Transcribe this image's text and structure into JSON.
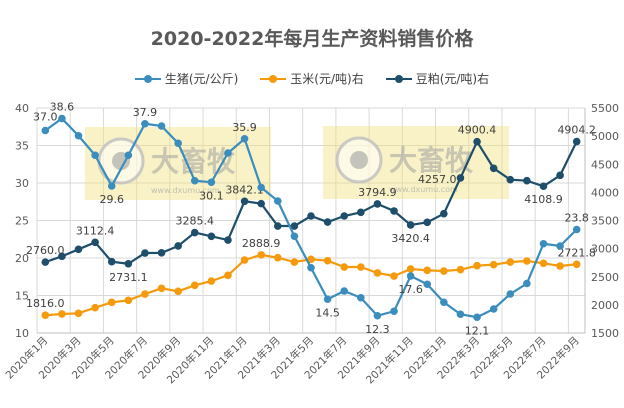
{
  "chart_data": {
    "type": "line",
    "title": "2020-2022年每月生产资料销售价格",
    "categories": [
      "2020年1月",
      "2020年2月",
      "2020年3月",
      "2020年4月",
      "2020年5月",
      "2020年6月",
      "2020年7月",
      "2020年8月",
      "2020年9月",
      "2020年10月",
      "2020年11月",
      "2020年12月",
      "2021年1月",
      "2021年2月",
      "2021年3月",
      "2021年4月",
      "2021年5月",
      "2021年6月",
      "2021年7月",
      "2021年8月",
      "2021年9月",
      "2021年10月",
      "2021年11月",
      "2021年12月",
      "2022年1月",
      "2022年2月",
      "2022年3月",
      "2022年4月",
      "2022年5月",
      "2022年6月",
      "2022年7月",
      "2022年8月",
      "2022年9月"
    ],
    "tick_labels": [
      "2020年1月",
      "2020年3月",
      "2020年5月",
      "2020年7月",
      "2020年9月",
      "2020年11月",
      "2021年1月",
      "2021年3月",
      "2021年5月",
      "2021年7月",
      "2021年9月",
      "2021年11月",
      "2022年1月",
      "2022年3月",
      "2022年5月",
      "2022年7月",
      "2022年9月"
    ],
    "left_axis": {
      "ylim": [
        10,
        40
      ],
      "ticks": [
        "10",
        "15",
        "20",
        "25",
        "30",
        "35",
        "40"
      ]
    },
    "right_axis": {
      "ylim": [
        1500,
        5500
      ],
      "ticks": [
        "1500",
        "2000",
        "2500",
        "3000",
        "3500",
        "4000",
        "4500",
        "5000",
        "5500"
      ]
    },
    "grid": true,
    "legend_position": "top",
    "series": [
      {
        "name": "生猪(元/公斤)",
        "axis": "left",
        "color": "#3b8dbd",
        "values": [
          37.0,
          38.6,
          36.3,
          33.7,
          29.6,
          33.7,
          37.9,
          37.6,
          35.3,
          30.3,
          30.1,
          34.0,
          35.9,
          29.4,
          27.6,
          22.9,
          18.7,
          14.5,
          15.6,
          14.7,
          12.3,
          12.9,
          17.6,
          16.5,
          14.1,
          12.5,
          12.1,
          13.2,
          15.2,
          16.6,
          21.9,
          21.6,
          23.8
        ],
        "labels": [
          {
            "i": 0,
            "text": "37.0",
            "pos": "above-left"
          },
          {
            "i": 1,
            "text": "38.6",
            "pos": "above"
          },
          {
            "i": 4,
            "text": "29.6",
            "pos": "below"
          },
          {
            "i": 6,
            "text": "37.9",
            "pos": "above"
          },
          {
            "i": 10,
            "text": "30.1",
            "pos": "below"
          },
          {
            "i": 12,
            "text": "35.9",
            "pos": "above"
          },
          {
            "i": 17,
            "text": "14.5",
            "pos": "below"
          },
          {
            "i": 20,
            "text": "12.3",
            "pos": "below"
          },
          {
            "i": 22,
            "text": "17.6",
            "pos": "below"
          },
          {
            "i": 26,
            "text": "12.1",
            "pos": "below"
          },
          {
            "i": 32,
            "text": "23.8",
            "pos": "above"
          }
        ]
      },
      {
        "name": "玉米(元/吨)右",
        "axis": "right",
        "color": "#f59a0b",
        "values": [
          1816.0,
          1838,
          1850,
          1950,
          2045,
          2081,
          2193,
          2295,
          2241,
          2348,
          2424,
          2526,
          2798,
          2888.9,
          2839,
          2762,
          2810,
          2786,
          2673,
          2673,
          2567,
          2513,
          2638,
          2614,
          2602,
          2626,
          2697,
          2715,
          2762,
          2780,
          2739,
          2691,
          2721.8
        ],
        "labels": [
          {
            "i": 0,
            "text": "1816.0",
            "pos": "above"
          },
          {
            "i": 13,
            "text": "2888.9",
            "pos": "above"
          },
          {
            "i": 32,
            "text": "2721.8",
            "pos": "above"
          }
        ]
      },
      {
        "name": "豆粕(元/吨)右",
        "axis": "right",
        "color": "#1f4e6b",
        "values": [
          2760.0,
          2863,
          2988,
          3112.4,
          2768,
          2731.1,
          2922,
          2925,
          3047,
          3285.4,
          3219,
          3153,
          3842.1,
          3800,
          3402,
          3402,
          3580,
          3473,
          3580,
          3645,
          3794.9,
          3669,
          3420.4,
          3467,
          3621,
          4257.0,
          4900.4,
          4428,
          4226,
          4208,
          4108.9,
          4303,
          4904.2
        ],
        "labels": [
          {
            "i": 0,
            "text": "2760.0",
            "pos": "above"
          },
          {
            "i": 3,
            "text": "3112.4",
            "pos": "above"
          },
          {
            "i": 5,
            "text": "2731.1",
            "pos": "below"
          },
          {
            "i": 9,
            "text": "3285.4",
            "pos": "above"
          },
          {
            "i": 12,
            "text": "3842.1",
            "pos": "above"
          },
          {
            "i": 20,
            "text": "3794.9",
            "pos": "above"
          },
          {
            "i": 22,
            "text": "3420.4",
            "pos": "below"
          },
          {
            "i": 25,
            "text": "4257.0",
            "pos": "left"
          },
          {
            "i": 26,
            "text": "4900.4",
            "pos": "above"
          },
          {
            "i": 30,
            "text": "4108.9",
            "pos": "below"
          },
          {
            "i": 32,
            "text": "4904.2",
            "pos": "above"
          }
        ]
      }
    ]
  },
  "watermark": {
    "brand": "大畜牧",
    "url": "www.dxumu.com"
  }
}
